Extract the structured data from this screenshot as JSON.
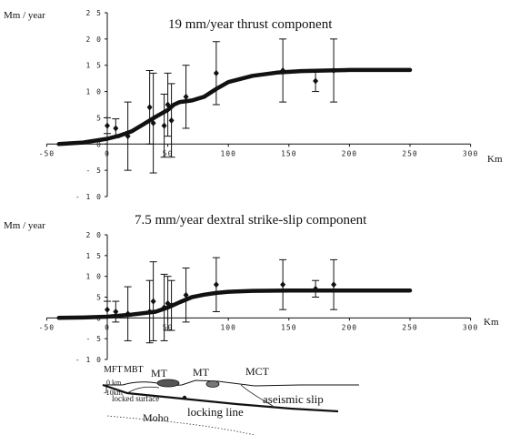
{
  "chart_data": [
    {
      "type": "scatter",
      "title": "19 mm/year thrust component",
      "ylabel": "Mm / year",
      "xlabel": "Km",
      "xlim": [
        -50,
        300
      ],
      "ylim": [
        -10,
        25
      ],
      "x_ticks": [
        -50,
        0,
        50,
        100,
        150,
        200,
        250,
        300
      ],
      "x_tick_labels": [
        "-50",
        "0",
        "50",
        "100",
        "150",
        "200",
        "250",
        "300"
      ],
      "y_ticks": [
        -10,
        -5,
        0,
        5,
        10,
        15,
        20,
        25
      ],
      "y_tick_labels": [
        "- 1 0",
        "- 5",
        "0",
        "5",
        "1 0",
        "1 5",
        "2 0",
        "2 5"
      ],
      "series": [
        {
          "kind": "observed",
          "points": [
            {
              "x": 0,
              "y": 3.5,
              "err": 1.5
            },
            {
              "x": 7,
              "y": 3,
              "err": 1.8
            },
            {
              "x": 17,
              "y": 1.5,
              "err": 6.5
            },
            {
              "x": 35,
              "y": 7,
              "err": 7
            },
            {
              "x": 38,
              "y": 4,
              "err": 9.5
            },
            {
              "x": 47,
              "y": 3.5,
              "err": 6
            },
            {
              "x": 50,
              "y": 7.5,
              "err": 6
            },
            {
              "x": 53,
              "y": 4.5,
              "err": 7
            },
            {
              "x": 65,
              "y": 9,
              "err": 6
            },
            {
              "x": 90,
              "y": 13.5,
              "err": 6
            },
            {
              "x": 145,
              "y": 14,
              "err": 6
            },
            {
              "x": 172,
              "y": 12,
              "err": 2
            },
            {
              "x": 187,
              "y": 14,
              "err": 6
            }
          ]
        },
        {
          "kind": "model",
          "x": [
            -40,
            -20,
            0,
            10,
            20,
            30,
            40,
            50,
            55,
            60,
            70,
            80,
            90,
            100,
            120,
            140,
            160,
            180,
            200,
            220,
            250
          ],
          "y": [
            0,
            0.3,
            1,
            1.6,
            2.4,
            3.8,
            5.2,
            6.5,
            7.5,
            8,
            8.3,
            9,
            10.5,
            11.8,
            13,
            13.6,
            13.9,
            14,
            14.1,
            14.1,
            14.1
          ]
        }
      ]
    },
    {
      "type": "scatter",
      "title": "7.5 mm/year dextral strike-slip component",
      "ylabel": "Mm / year",
      "xlabel": "Km",
      "xlim": [
        -50,
        300
      ],
      "ylim": [
        -10,
        20
      ],
      "x_ticks": [
        -50,
        0,
        50,
        100,
        150,
        200,
        250,
        300
      ],
      "x_tick_labels": [
        "-50",
        "0",
        "50",
        "100",
        "150",
        "200",
        "250",
        "300"
      ],
      "y_ticks": [
        -10,
        -5,
        0,
        5,
        10,
        15,
        20
      ],
      "y_tick_labels": [
        "- 1 0",
        "- 5",
        "0",
        "5",
        "1 0",
        "1 5",
        "2 0"
      ],
      "series": [
        {
          "kind": "observed",
          "points": [
            {
              "x": 0,
              "y": 2,
              "err": 2
            },
            {
              "x": 7,
              "y": 1.5,
              "err": 2.5
            },
            {
              "x": 17,
              "y": 1,
              "err": 6.5
            },
            {
              "x": 35,
              "y": 1.5,
              "err": 7.5
            },
            {
              "x": 38,
              "y": 4,
              "err": 9.5
            },
            {
              "x": 47,
              "y": 2.5,
              "err": 8
            },
            {
              "x": 50,
              "y": 3.5,
              "err": 6.5
            },
            {
              "x": 53,
              "y": 3,
              "err": 6
            },
            {
              "x": 65,
              "y": 5.5,
              "err": 6.5
            },
            {
              "x": 90,
              "y": 8,
              "err": 6.5
            },
            {
              "x": 145,
              "y": 8,
              "err": 6
            },
            {
              "x": 172,
              "y": 7,
              "err": 2
            },
            {
              "x": 187,
              "y": 8,
              "err": 6
            }
          ]
        },
        {
          "kind": "model",
          "x": [
            -40,
            -20,
            0,
            20,
            40,
            50,
            60,
            70,
            80,
            90,
            100,
            120,
            150,
            200,
            250
          ],
          "y": [
            0,
            0.1,
            0.3,
            0.8,
            1.5,
            2.5,
            3.8,
            5,
            5.6,
            6,
            6.3,
            6.5,
            6.6,
            6.6,
            6.6
          ]
        }
      ]
    }
  ],
  "cross_section": {
    "labels": {
      "mft": "MFT",
      "mbt": "MBT",
      "mt1": "MT",
      "mt2": "MT",
      "mct": "MCT",
      "zero_km": "0 km",
      "minus10km": "-10km",
      "locked_surface": "locked surface",
      "locking_line": "locking line",
      "aseismic_slip": "aseismic slip",
      "moho": "Moho"
    }
  }
}
